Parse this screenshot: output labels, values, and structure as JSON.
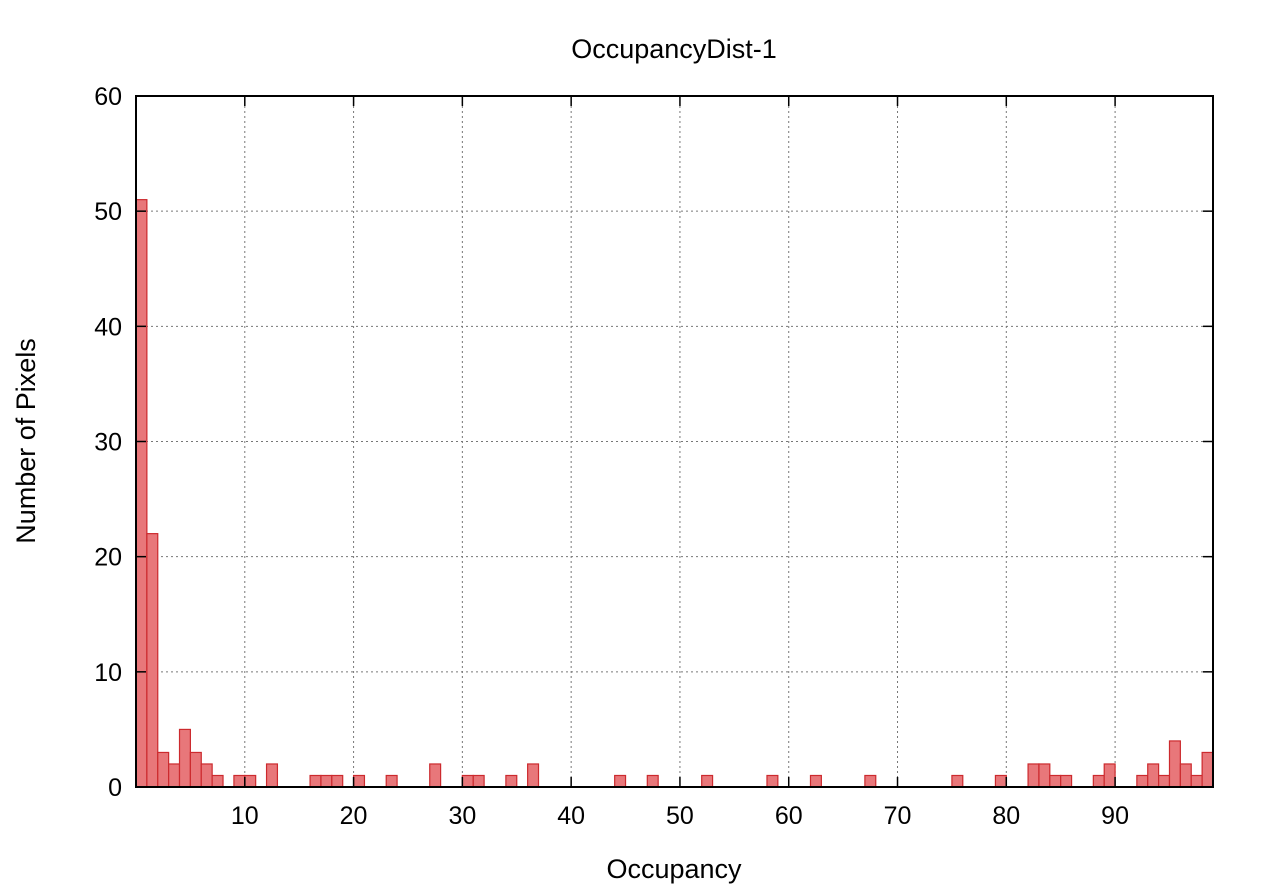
{
  "chart_data": {
    "type": "bar",
    "title": "OccupancyDist-1",
    "xlabel": "Occupancy",
    "ylabel": "Number of Pixels",
    "xlim": [
      0,
      99
    ],
    "ylim": [
      0,
      60
    ],
    "x_ticks": [
      10,
      20,
      30,
      40,
      50,
      60,
      70,
      80,
      90
    ],
    "y_ticks": [
      0,
      10,
      20,
      30,
      40,
      50,
      60
    ],
    "grid": true,
    "bar_fill": "#e8777a",
    "bar_stroke": "#cc2a2e",
    "x": [
      0,
      1,
      2,
      3,
      4,
      5,
      6,
      7,
      9,
      10,
      12,
      16,
      17,
      18,
      20,
      23,
      27,
      30,
      31,
      34,
      36,
      44,
      47,
      52,
      58,
      62,
      67,
      75,
      79,
      82,
      83,
      84,
      85,
      88,
      89,
      92,
      93,
      94,
      95,
      96,
      97,
      98
    ],
    "values": [
      51,
      22,
      3,
      2,
      5,
      3,
      2,
      1,
      1,
      1,
      2,
      1,
      1,
      1,
      1,
      1,
      2,
      1,
      1,
      1,
      2,
      1,
      1,
      1,
      1,
      1,
      1,
      1,
      1,
      2,
      2,
      1,
      1,
      1,
      2,
      1,
      2,
      1,
      4,
      2,
      1,
      3
    ]
  }
}
